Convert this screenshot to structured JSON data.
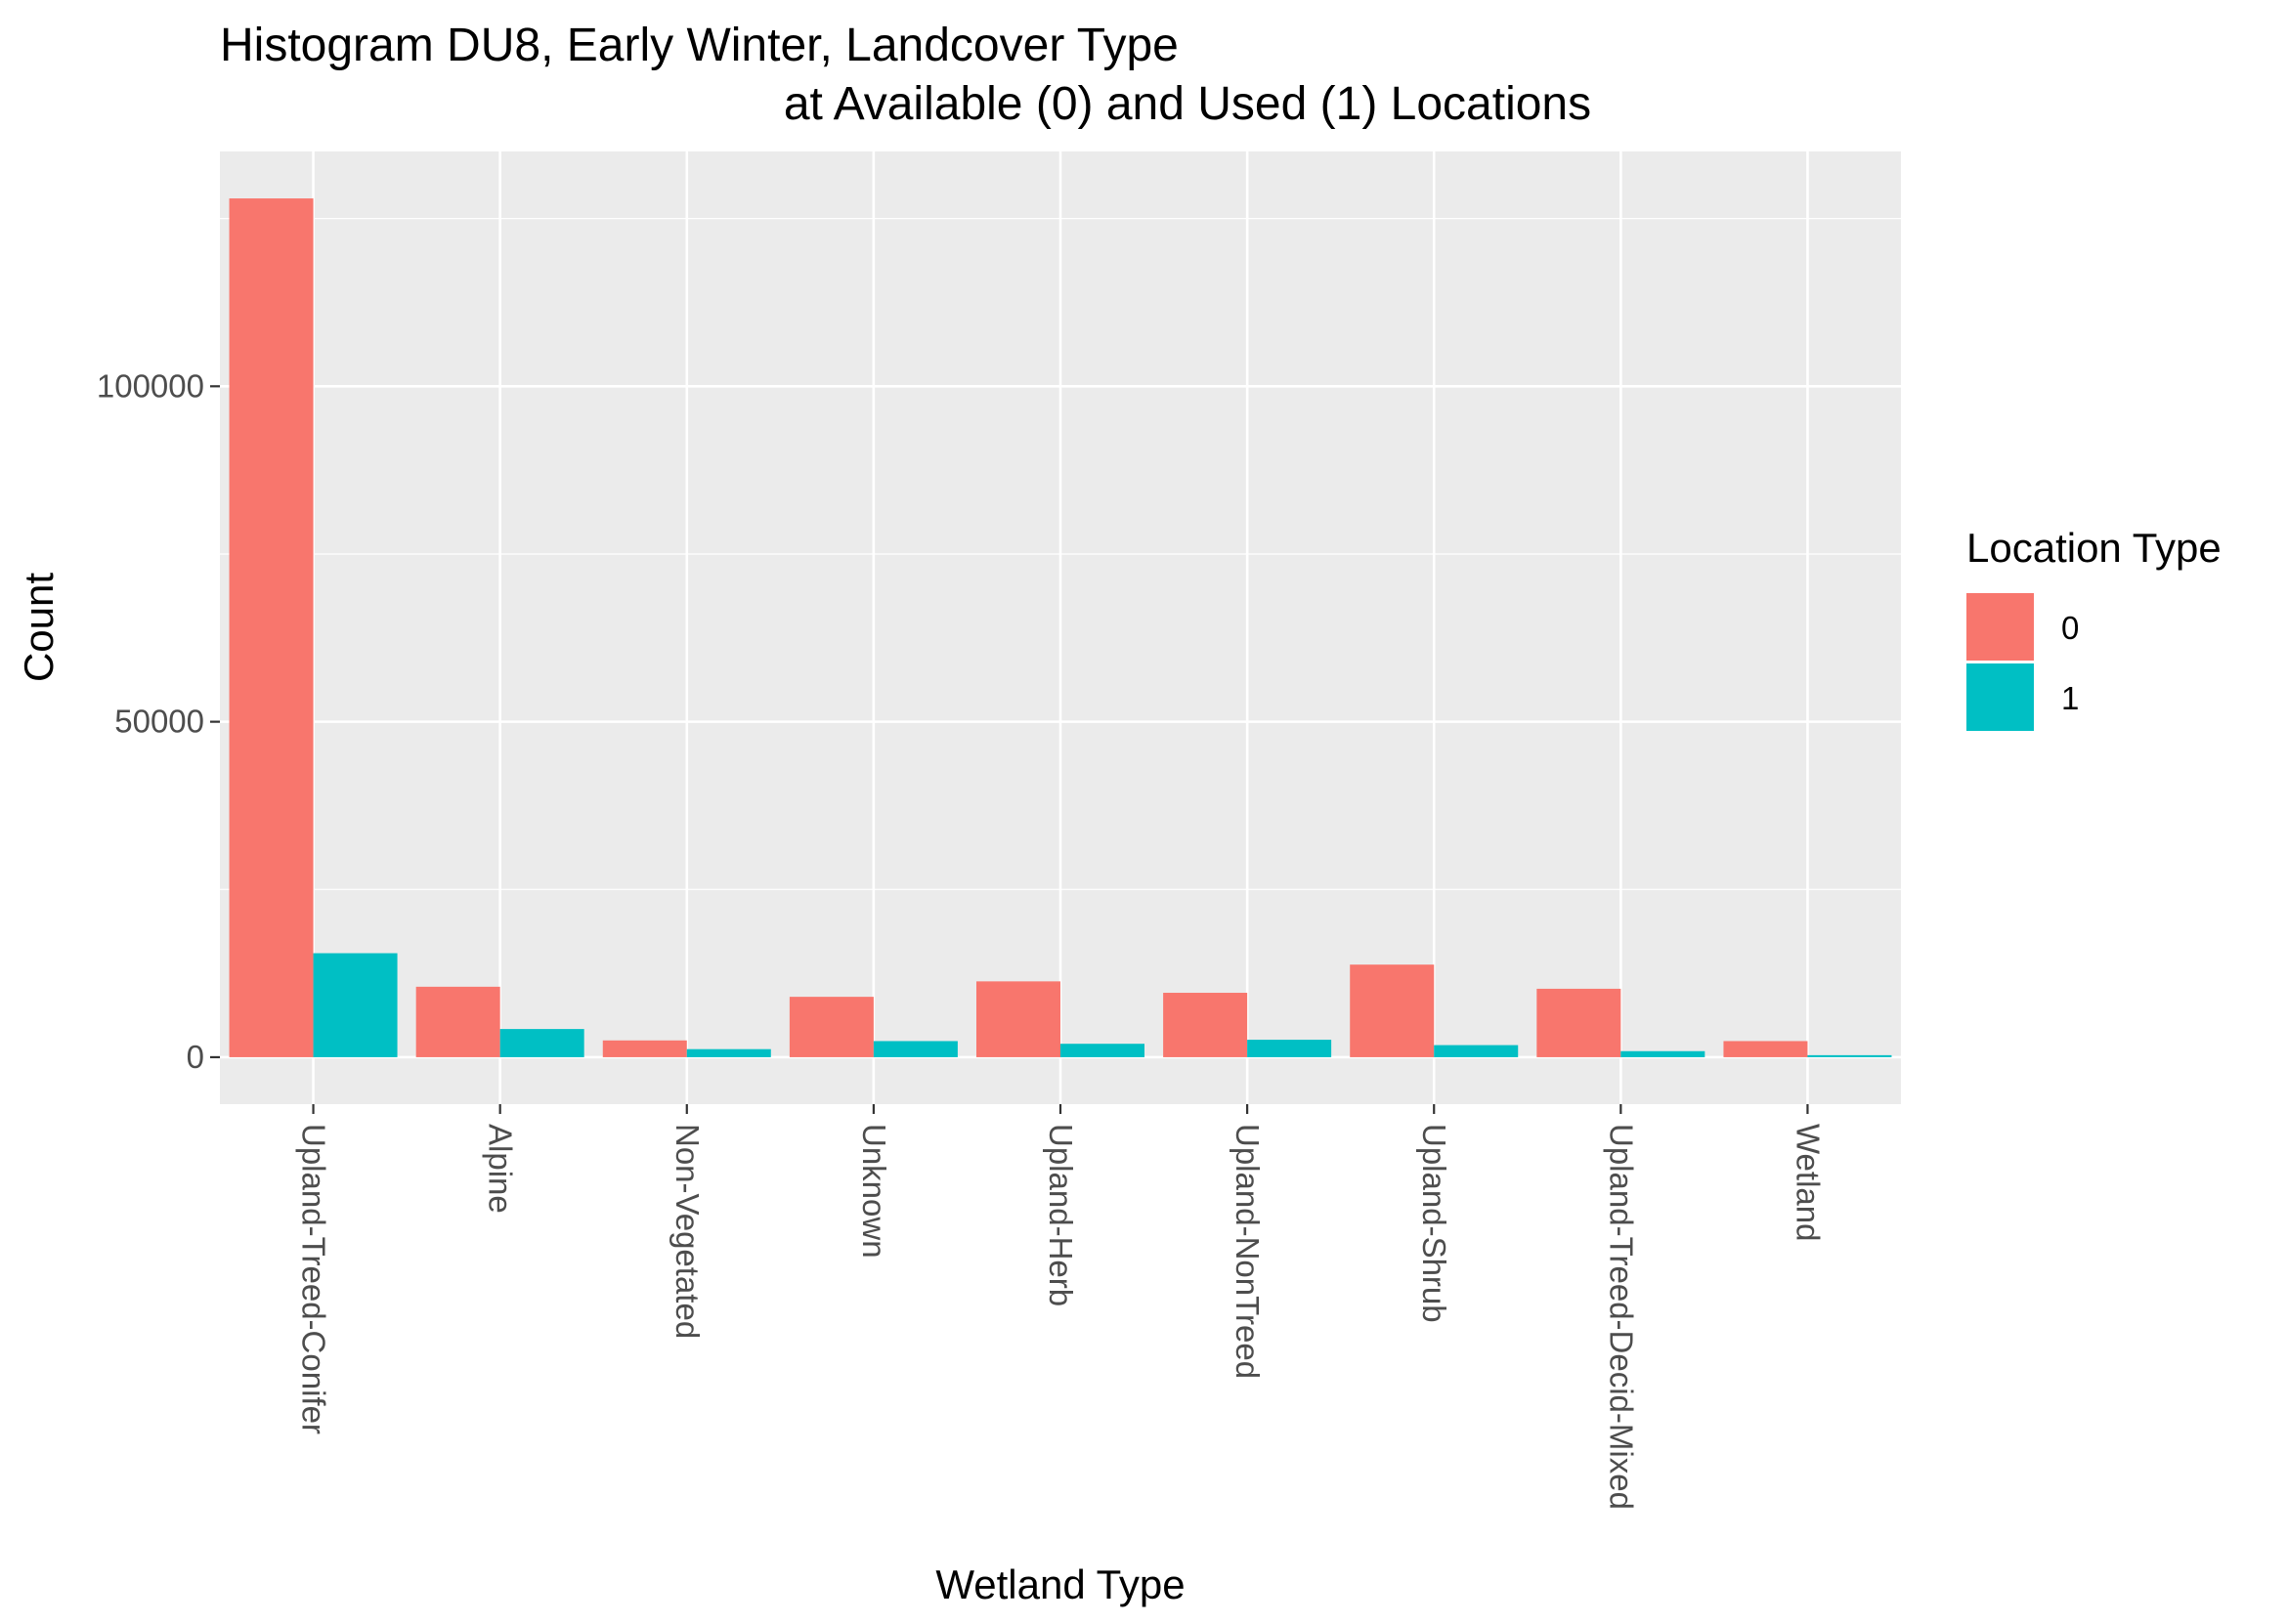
{
  "chart_data": {
    "type": "bar",
    "title_line1": "Histogram DU8, Early Winter, Landcover Type",
    "title_line2": "at Available (0) and Used (1) Locations",
    "xlabel": "Wetland Type",
    "ylabel": "Count",
    "categories": [
      "Upland-Treed-Conifer",
      "Alpine",
      "Non-Vegetated",
      "Unknown",
      "Upland-Herb",
      "Upland-NonTreed",
      "Upland-Shrub",
      "Upland-Treed-Decid-Mixed",
      "Wetland"
    ],
    "series": [
      {
        "name": "0",
        "color": "#F8766D",
        "values": [
          128000,
          10500,
          2500,
          9000,
          11300,
          9600,
          13800,
          10200,
          2400
        ]
      },
      {
        "name": "1",
        "color": "#00BFC4",
        "values": [
          15500,
          4200,
          1200,
          2400,
          2000,
          2600,
          1800,
          900,
          300
        ]
      }
    ],
    "ylim": [
      -7000,
      135000
    ],
    "yticks": [
      0,
      50000,
      100000
    ],
    "ytick_labels": [
      "0",
      "50000",
      "100000"
    ],
    "legend": {
      "title": "Location Type",
      "position": "right"
    },
    "grid": true,
    "panel_color": "#EBEBEB"
  }
}
